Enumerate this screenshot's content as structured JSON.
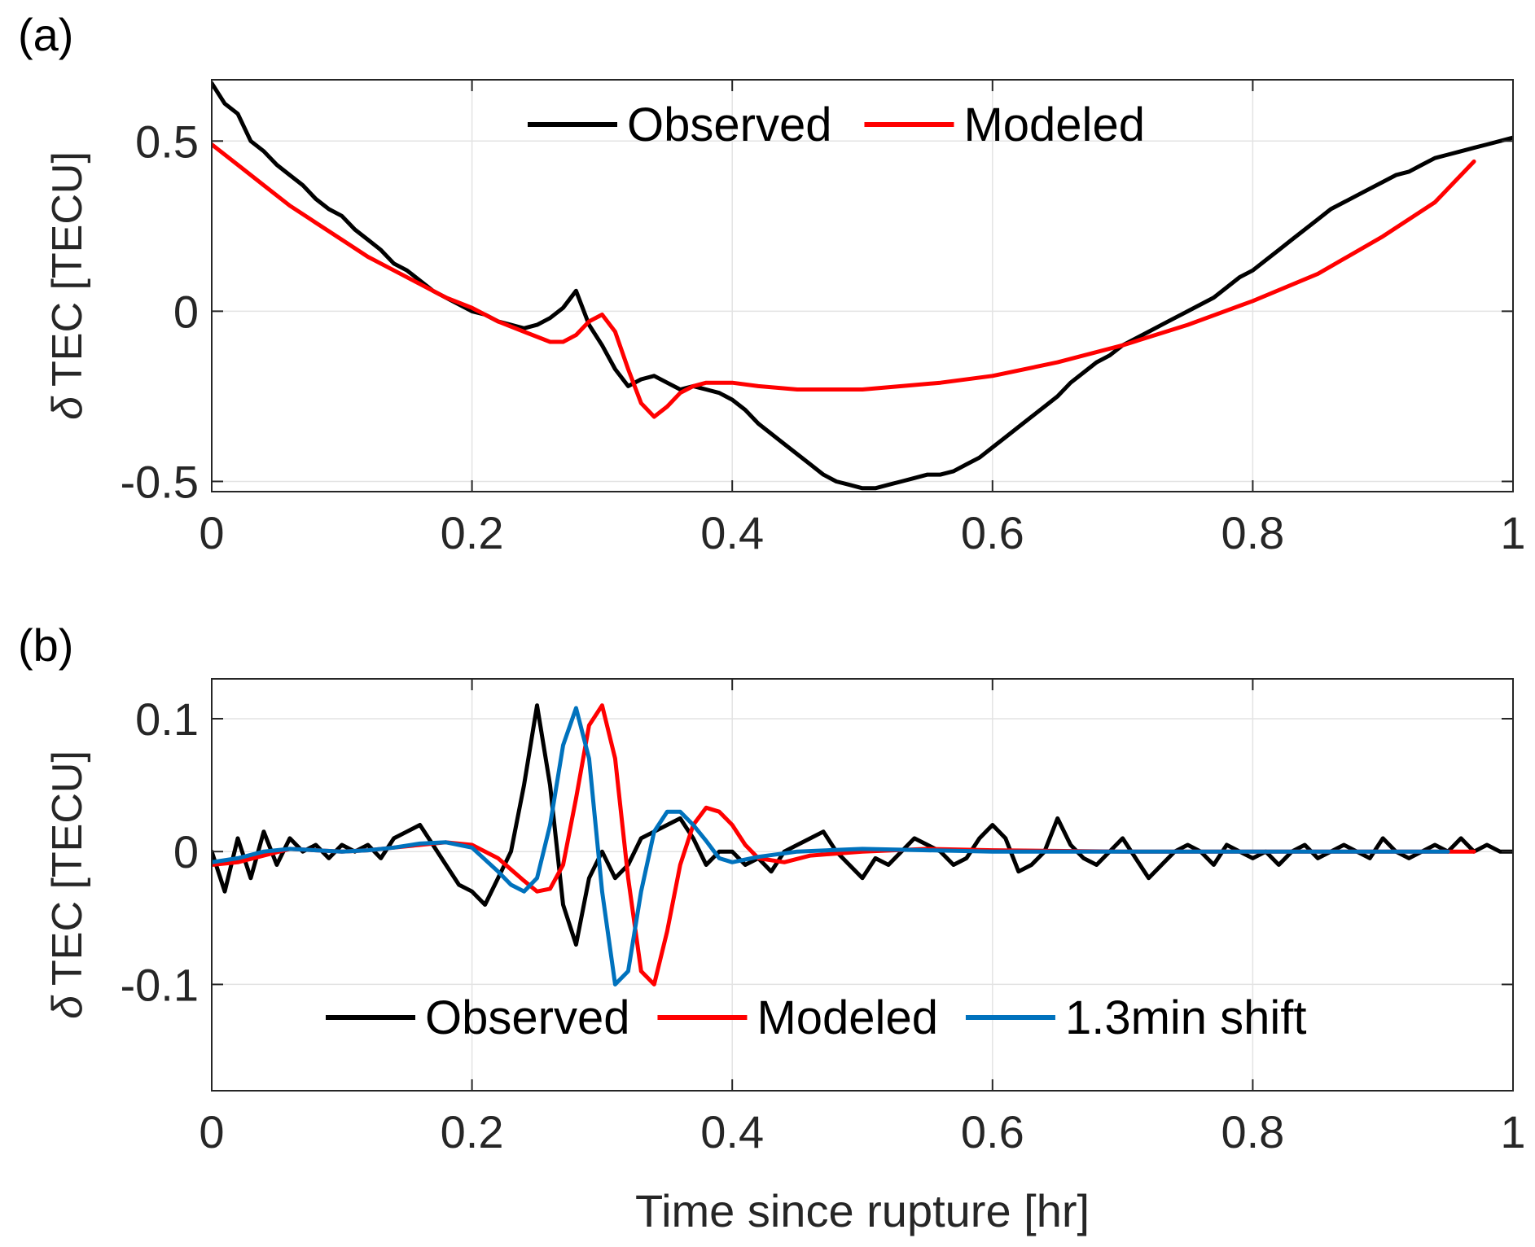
{
  "chart_data": [
    {
      "type": "line",
      "panel_label": "(a)",
      "ylabel_symbol": "δ",
      "ylabel": "TEC [TECU]",
      "xlabel": "",
      "xlim": [
        0,
        1
      ],
      "ylim": [
        -0.53,
        0.68
      ],
      "xticks": [
        0,
        0.2,
        0.4,
        0.6,
        0.8,
        1
      ],
      "xtick_labels": [
        "0",
        "0.2",
        "0.4",
        "0.6",
        "0.8",
        "1"
      ],
      "yticks": [
        -0.5,
        0,
        0.5
      ],
      "ytick_labels": [
        "-0.5",
        "0",
        "0.5"
      ],
      "grid": true,
      "legend_position": "top-center",
      "legend_orientation": "horizontal",
      "series": [
        {
          "name": "Observed",
          "color": "#000000",
          "x": [
            0,
            0.01,
            0.02,
            0.03,
            0.04,
            0.05,
            0.06,
            0.07,
            0.08,
            0.09,
            0.1,
            0.11,
            0.12,
            0.13,
            0.14,
            0.15,
            0.16,
            0.17,
            0.18,
            0.19,
            0.2,
            0.21,
            0.22,
            0.23,
            0.24,
            0.25,
            0.26,
            0.27,
            0.28,
            0.29,
            0.3,
            0.31,
            0.32,
            0.33,
            0.34,
            0.35,
            0.36,
            0.37,
            0.38,
            0.39,
            0.4,
            0.41,
            0.42,
            0.43,
            0.44,
            0.45,
            0.46,
            0.47,
            0.48,
            0.49,
            0.5,
            0.51,
            0.52,
            0.53,
            0.54,
            0.55,
            0.56,
            0.57,
            0.58,
            0.59,
            0.6,
            0.61,
            0.62,
            0.63,
            0.64,
            0.65,
            0.66,
            0.67,
            0.68,
            0.69,
            0.7,
            0.71,
            0.72,
            0.73,
            0.74,
            0.75,
            0.76,
            0.77,
            0.78,
            0.79,
            0.8,
            0.81,
            0.82,
            0.83,
            0.84,
            0.85,
            0.86,
            0.87,
            0.88,
            0.89,
            0.9,
            0.91,
            0.92,
            0.93,
            0.94,
            0.95,
            0.96,
            0.97,
            0.98,
            0.99,
            1.0
          ],
          "y": [
            0.67,
            0.61,
            0.58,
            0.5,
            0.47,
            0.43,
            0.4,
            0.37,
            0.33,
            0.3,
            0.28,
            0.24,
            0.21,
            0.18,
            0.14,
            0.12,
            0.09,
            0.06,
            0.04,
            0.02,
            0.0,
            -0.01,
            -0.03,
            -0.04,
            -0.05,
            -0.04,
            -0.02,
            0.01,
            0.06,
            -0.04,
            -0.1,
            -0.17,
            -0.22,
            -0.2,
            -0.19,
            -0.21,
            -0.23,
            -0.22,
            -0.23,
            -0.24,
            -0.26,
            -0.29,
            -0.33,
            -0.36,
            -0.39,
            -0.42,
            -0.45,
            -0.48,
            -0.5,
            -0.51,
            -0.52,
            -0.52,
            -0.51,
            -0.5,
            -0.49,
            -0.48,
            -0.48,
            -0.47,
            -0.45,
            -0.43,
            -0.4,
            -0.37,
            -0.34,
            -0.31,
            -0.28,
            -0.25,
            -0.21,
            -0.18,
            -0.15,
            -0.13,
            -0.1,
            -0.08,
            -0.06,
            -0.04,
            -0.02,
            0.0,
            0.02,
            0.04,
            0.07,
            0.1,
            0.12,
            0.15,
            0.18,
            0.21,
            0.24,
            0.27,
            0.3,
            0.32,
            0.34,
            0.36,
            0.38,
            0.4,
            0.41,
            0.43,
            0.45,
            0.46,
            0.47,
            0.48,
            0.49,
            0.5,
            0.51
          ]
        },
        {
          "name": "Modeled",
          "color": "#ff0000",
          "x": [
            0,
            0.02,
            0.04,
            0.06,
            0.08,
            0.1,
            0.12,
            0.14,
            0.16,
            0.18,
            0.2,
            0.22,
            0.24,
            0.26,
            0.27,
            0.28,
            0.29,
            0.3,
            0.31,
            0.32,
            0.33,
            0.34,
            0.35,
            0.36,
            0.37,
            0.38,
            0.4,
            0.42,
            0.45,
            0.48,
            0.5,
            0.53,
            0.56,
            0.6,
            0.65,
            0.7,
            0.75,
            0.8,
            0.85,
            0.9,
            0.94,
            0.97
          ],
          "y": [
            0.49,
            0.43,
            0.37,
            0.31,
            0.26,
            0.21,
            0.16,
            0.12,
            0.08,
            0.04,
            0.01,
            -0.03,
            -0.06,
            -0.09,
            -0.09,
            -0.07,
            -0.03,
            -0.01,
            -0.06,
            -0.17,
            -0.27,
            -0.31,
            -0.28,
            -0.24,
            -0.22,
            -0.21,
            -0.21,
            -0.22,
            -0.23,
            -0.23,
            -0.23,
            -0.22,
            -0.21,
            -0.19,
            -0.15,
            -0.1,
            -0.04,
            0.03,
            0.11,
            0.22,
            0.32,
            0.44
          ]
        }
      ]
    },
    {
      "type": "line",
      "panel_label": "(b)",
      "ylabel_symbol": "δ",
      "ylabel": "TEC [TECU]",
      "xlabel": "Time since rupture [hr]",
      "xlim": [
        0,
        1
      ],
      "ylim": [
        -0.18,
        0.13
      ],
      "xticks": [
        0,
        0.2,
        0.4,
        0.6,
        0.8,
        1
      ],
      "xtick_labels": [
        "0",
        "0.2",
        "0.4",
        "0.6",
        "0.8",
        "1"
      ],
      "yticks": [
        -0.1,
        0,
        0.1
      ],
      "ytick_labels": [
        "-0.1",
        "0",
        "0.1"
      ],
      "grid": true,
      "legend_position": "bottom-center",
      "legend_orientation": "horizontal",
      "series": [
        {
          "name": "Observed",
          "color": "#000000",
          "x": [
            0,
            0.01,
            0.02,
            0.03,
            0.04,
            0.05,
            0.06,
            0.07,
            0.08,
            0.09,
            0.1,
            0.11,
            0.12,
            0.13,
            0.14,
            0.15,
            0.16,
            0.17,
            0.18,
            0.19,
            0.2,
            0.21,
            0.22,
            0.23,
            0.24,
            0.25,
            0.26,
            0.27,
            0.28,
            0.29,
            0.3,
            0.31,
            0.32,
            0.33,
            0.34,
            0.35,
            0.36,
            0.37,
            0.38,
            0.39,
            0.4,
            0.41,
            0.42,
            0.43,
            0.44,
            0.45,
            0.46,
            0.47,
            0.48,
            0.49,
            0.5,
            0.51,
            0.52,
            0.53,
            0.54,
            0.55,
            0.56,
            0.57,
            0.58,
            0.59,
            0.6,
            0.61,
            0.62,
            0.63,
            0.64,
            0.65,
            0.66,
            0.67,
            0.68,
            0.69,
            0.7,
            0.71,
            0.72,
            0.73,
            0.74,
            0.75,
            0.76,
            0.77,
            0.78,
            0.79,
            0.8,
            0.81,
            0.82,
            0.83,
            0.84,
            0.85,
            0.86,
            0.87,
            0.88,
            0.89,
            0.9,
            0.91,
            0.92,
            0.93,
            0.94,
            0.95,
            0.96,
            0.97,
            0.98,
            0.99,
            1.0
          ],
          "y": [
            0.0,
            -0.03,
            0.01,
            -0.02,
            0.015,
            -0.01,
            0.01,
            0.0,
            0.005,
            -0.005,
            0.005,
            0.0,
            0.005,
            -0.005,
            0.01,
            0.015,
            0.02,
            0.005,
            -0.01,
            -0.025,
            -0.03,
            -0.04,
            -0.02,
            0.0,
            0.05,
            0.11,
            0.05,
            -0.04,
            -0.07,
            -0.02,
            0.0,
            -0.02,
            -0.01,
            0.01,
            0.015,
            0.02,
            0.025,
            0.01,
            -0.01,
            0.0,
            0.0,
            -0.01,
            -0.005,
            -0.015,
            0.0,
            0.005,
            0.01,
            0.015,
            0.0,
            -0.01,
            -0.02,
            -0.005,
            -0.01,
            0.0,
            0.01,
            0.005,
            0.0,
            -0.01,
            -0.005,
            0.01,
            0.02,
            0.01,
            -0.015,
            -0.01,
            0.0,
            0.025,
            0.005,
            -0.005,
            -0.01,
            0.0,
            0.01,
            -0.005,
            -0.02,
            -0.01,
            0.0,
            0.005,
            0.0,
            -0.01,
            0.005,
            0.0,
            -0.005,
            0.0,
            -0.01,
            0.0,
            0.005,
            -0.005,
            0.0,
            0.005,
            0.0,
            -0.005,
            0.01,
            0.0,
            -0.005,
            0.0,
            0.005,
            0.0,
            0.01,
            0.0,
            0.005,
            0.0,
            0.0
          ]
        },
        {
          "name": "Modeled",
          "color": "#ff0000",
          "x": [
            0,
            0.02,
            0.04,
            0.06,
            0.08,
            0.1,
            0.12,
            0.14,
            0.16,
            0.18,
            0.2,
            0.22,
            0.24,
            0.25,
            0.26,
            0.27,
            0.28,
            0.29,
            0.3,
            0.31,
            0.32,
            0.33,
            0.34,
            0.35,
            0.36,
            0.37,
            0.38,
            0.39,
            0.4,
            0.41,
            0.42,
            0.44,
            0.46,
            0.5,
            0.55,
            0.6,
            0.7,
            0.8,
            0.9,
            0.97
          ],
          "y": [
            -0.01,
            -0.008,
            -0.003,
            0.002,
            0.001,
            0.0,
            0.001,
            0.003,
            0.005,
            0.007,
            0.005,
            -0.005,
            -0.022,
            -0.03,
            -0.028,
            -0.01,
            0.04,
            0.095,
            0.11,
            0.07,
            -0.02,
            -0.09,
            -0.1,
            -0.06,
            -0.01,
            0.02,
            0.033,
            0.03,
            0.02,
            0.005,
            -0.005,
            -0.008,
            -0.003,
            0.0,
            0.002,
            0.001,
            0.0,
            0.0,
            0.0,
            0.0
          ]
        },
        {
          "name": "1.3min shift",
          "color": "#0072bd",
          "x": [
            0,
            0.02,
            0.04,
            0.06,
            0.08,
            0.1,
            0.12,
            0.14,
            0.16,
            0.18,
            0.2,
            0.22,
            0.23,
            0.24,
            0.25,
            0.26,
            0.27,
            0.28,
            0.29,
            0.3,
            0.31,
            0.32,
            0.33,
            0.34,
            0.35,
            0.36,
            0.37,
            0.38,
            0.39,
            0.4,
            0.42,
            0.45,
            0.5,
            0.55,
            0.6,
            0.7,
            0.8,
            0.9,
            0.95
          ],
          "y": [
            -0.008,
            -0.005,
            0.0,
            0.002,
            0.001,
            0.0,
            0.001,
            0.003,
            0.006,
            0.007,
            0.003,
            -0.015,
            -0.025,
            -0.03,
            -0.02,
            0.02,
            0.08,
            0.108,
            0.07,
            -0.03,
            -0.1,
            -0.09,
            -0.03,
            0.015,
            0.03,
            0.03,
            0.02,
            0.008,
            -0.005,
            -0.008,
            -0.004,
            0.0,
            0.002,
            0.001,
            0.0,
            0.0,
            0.0,
            0.0,
            0.0
          ]
        }
      ]
    }
  ]
}
